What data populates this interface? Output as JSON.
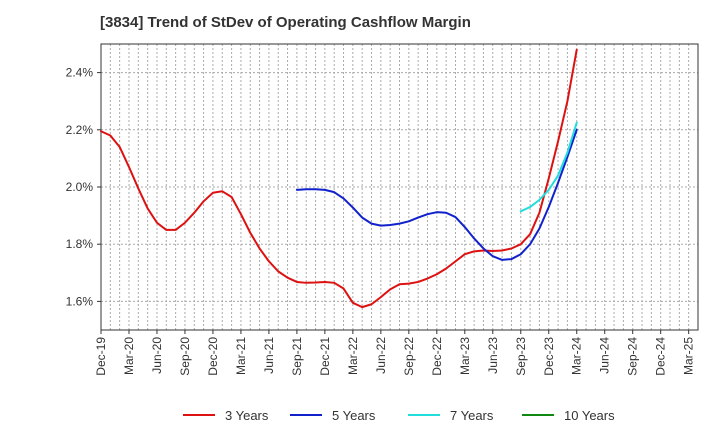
{
  "chart_data": {
    "type": "line",
    "title": "[3834]  Trend of StDev of Operating Cashflow Margin",
    "xlabel": "",
    "ylabel": "",
    "ylim": [
      1.5,
      2.5
    ],
    "yticks": [
      1.6,
      1.8,
      2.0,
      2.2,
      2.4
    ],
    "ytick_labels": [
      "1.6%",
      "1.8%",
      "2.0%",
      "2.2%",
      "2.4%"
    ],
    "xtick_labels": [
      "Dec-19",
      "Mar-20",
      "Jun-20",
      "Sep-20",
      "Dec-20",
      "Mar-21",
      "Jun-21",
      "Sep-21",
      "Dec-21",
      "Mar-22",
      "Jun-22",
      "Sep-22",
      "Dec-22",
      "Mar-23",
      "Jun-23",
      "Sep-23",
      "Dec-23",
      "Mar-24",
      "Jun-24",
      "Sep-24",
      "Dec-24",
      "Mar-25"
    ],
    "x_dates": [
      "2019-12",
      "2020-01",
      "2020-02",
      "2020-03",
      "2020-04",
      "2020-05",
      "2020-06",
      "2020-07",
      "2020-08",
      "2020-09",
      "2020-10",
      "2020-11",
      "2020-12",
      "2021-01",
      "2021-02",
      "2021-03",
      "2021-04",
      "2021-05",
      "2021-06",
      "2021-07",
      "2021-08",
      "2021-09",
      "2021-10",
      "2021-11",
      "2021-12",
      "2022-01",
      "2022-02",
      "2022-03",
      "2022-04",
      "2022-05",
      "2022-06",
      "2022-07",
      "2022-08",
      "2022-09",
      "2022-10",
      "2022-11",
      "2022-12",
      "2023-01",
      "2023-02",
      "2023-03",
      "2023-04",
      "2023-05",
      "2023-06",
      "2023-07",
      "2023-08",
      "2023-09",
      "2023-10",
      "2023-11",
      "2023-12",
      "2024-01",
      "2024-02",
      "2024-03"
    ],
    "grid": true,
    "legend_position": "bottom",
    "series": [
      {
        "name": "3 Years",
        "color": "#dd1111",
        "values": [
          2.195,
          2.18,
          2.14,
          2.07,
          1.995,
          1.925,
          1.875,
          1.85,
          1.85,
          1.875,
          1.91,
          1.95,
          1.98,
          1.985,
          1.965,
          1.905,
          1.84,
          1.785,
          1.74,
          1.705,
          1.683,
          1.668,
          1.665,
          1.666,
          1.668,
          1.665,
          1.645,
          1.595,
          1.58,
          1.59,
          1.615,
          1.642,
          1.66,
          1.662,
          1.668,
          1.68,
          1.695,
          1.715,
          1.74,
          1.765,
          1.775,
          1.778,
          1.776,
          1.778,
          1.785,
          1.8,
          1.835,
          1.91,
          2.03,
          2.16,
          2.3,
          2.48
        ]
      },
      {
        "name": "5 Years",
        "color": "#1122cc",
        "values": [
          null,
          null,
          null,
          null,
          null,
          null,
          null,
          null,
          null,
          null,
          null,
          null,
          null,
          null,
          null,
          null,
          null,
          null,
          null,
          null,
          null,
          1.99,
          1.992,
          1.992,
          1.99,
          1.982,
          1.96,
          1.928,
          1.893,
          1.872,
          1.865,
          1.867,
          1.872,
          1.88,
          1.893,
          1.905,
          1.912,
          1.91,
          1.895,
          1.86,
          1.82,
          1.785,
          1.758,
          1.745,
          1.748,
          1.765,
          1.8,
          1.855,
          1.93,
          2.015,
          2.105,
          2.2
        ]
      },
      {
        "name": "7 Years",
        "color": "#22dddd",
        "values": [
          null,
          null,
          null,
          null,
          null,
          null,
          null,
          null,
          null,
          null,
          null,
          null,
          null,
          null,
          null,
          null,
          null,
          null,
          null,
          null,
          null,
          null,
          null,
          null,
          null,
          null,
          null,
          null,
          null,
          null,
          null,
          null,
          null,
          null,
          null,
          null,
          null,
          null,
          null,
          null,
          null,
          null,
          null,
          null,
          null,
          1.915,
          1.93,
          1.955,
          1.99,
          2.04,
          2.12,
          2.225
        ]
      },
      {
        "name": "10 Years",
        "color": "#118811",
        "values": []
      }
    ]
  }
}
